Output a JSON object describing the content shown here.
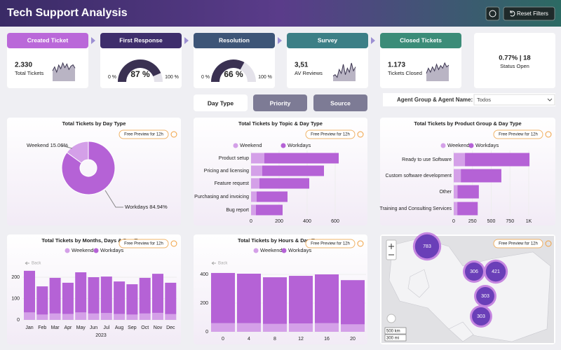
{
  "header": {
    "title": "Tech Support Analysis",
    "reset_button": "Reset Filters"
  },
  "kpis": [
    {
      "step": "Created Ticket",
      "value": "2.330",
      "label": "Total Tickets",
      "sparkline": [
        40,
        55,
        35,
        62,
        48,
        70,
        52,
        66,
        45,
        58,
        63,
        50
      ]
    },
    {
      "step": "First Response",
      "gauge": {
        "value": 87,
        "label": "87 %"
      },
      "min": {
        "value": 0,
        "label": "0 %"
      },
      "max": {
        "value": 100,
        "label": "100 %"
      }
    },
    {
      "step": "Resolution",
      "gauge": {
        "value": 66,
        "label": "66 %"
      },
      "min": {
        "value": 0,
        "label": "0 %"
      },
      "max": {
        "value": 100,
        "label": "100 %"
      }
    },
    {
      "step": "Survey",
      "value": "3,51",
      "label": "AV Reviews",
      "sparkline": [
        20,
        25,
        15,
        45,
        30,
        65,
        25,
        50,
        35,
        70,
        40,
        55
      ]
    },
    {
      "step": "Closed Tickets",
      "value": "1.173",
      "label": "Tickets Closed",
      "sparkline": [
        30,
        50,
        35,
        55,
        40,
        65,
        45,
        60,
        50,
        70,
        55,
        62
      ]
    },
    {
      "value": "0.77% | 18",
      "label": "Status Open"
    }
  ],
  "tabs": [
    "Day Type",
    "Priority",
    "Source"
  ],
  "filter": {
    "label": "Agent Group & Agent Name:",
    "value": "Todos"
  },
  "badge": "Free Preview for 12h",
  "back": "Back",
  "charts": [
    {
      "type": "pie",
      "title": "Total Tickets by Day Type",
      "categories": [
        "Weekend",
        "Workdays"
      ],
      "values": [
        15.06,
        84.94
      ],
      "value_labels": [
        "Weekend 15.06%",
        "Workdays 84.94%"
      ],
      "colors": [
        "#d4a0e8",
        "#b562d6"
      ]
    },
    {
      "type": "hbar",
      "title": "Total Tickets by Topic & Day Type",
      "categories": [
        "Product setup",
        "Pricing and licensing",
        "Feature request",
        "Purchasing and invoicing",
        "Bug report"
      ],
      "series": [
        {
          "name": "Weekend",
          "color": "#d4a0e8",
          "values": [
            95,
            80,
            60,
            40,
            35
          ]
        },
        {
          "name": "Workdays",
          "color": "#b562d6",
          "values": [
            530,
            440,
            355,
            220,
            190
          ]
        }
      ],
      "xlim": [
        0,
        700
      ],
      "xticks": [
        0,
        200,
        400,
        600
      ]
    },
    {
      "type": "hbar",
      "title": "Total Tickets by Product Group & Day Type",
      "categories": [
        "Ready to use Software",
        "Custom software development",
        "Other",
        "Training and Consulting Services"
      ],
      "series": [
        {
          "name": "Weekend",
          "color": "#d4a0e8",
          "values": [
            150,
            95,
            50,
            48
          ]
        },
        {
          "name": "Workdays",
          "color": "#b562d6",
          "values": [
            860,
            540,
            285,
            272
          ]
        }
      ],
      "xlim": [
        0,
        1100
      ],
      "xticks": [
        0,
        250,
        500,
        750,
        {
          "value": 1000,
          "label": "1K"
        }
      ]
    },
    {
      "type": "column",
      "title": "Total Tickets by Months, Days & Day Type",
      "categories": [
        "Jan",
        "Feb",
        "Mar",
        "Apr",
        "May",
        "Jun",
        "Jul",
        "Aug",
        "Sep",
        "Oct",
        "Nov",
        "Dec"
      ],
      "x_label": "2023",
      "series": [
        {
          "name": "Weekend",
          "color": "#d4a0e8",
          "values": [
            35,
            25,
            30,
            28,
            35,
            30,
            32,
            28,
            25,
            30,
            33,
            27
          ]
        },
        {
          "name": "Workdays",
          "color": "#b562d6",
          "values": [
            195,
            132,
            167,
            146,
            188,
            170,
            171,
            152,
            142,
            167,
            183,
            147
          ]
        }
      ],
      "ylim": [
        0,
        240
      ],
      "yticks": [
        0,
        100,
        200
      ]
    },
    {
      "type": "column",
      "title": "Total Tickets by Hours & Day Type",
      "categories": [
        0,
        4,
        8,
        12,
        16,
        20
      ],
      "series": [
        {
          "name": "Weekend",
          "color": "#d4a0e8",
          "values": [
            60,
            60,
            55,
            58,
            60,
            52
          ]
        },
        {
          "name": "Workdays",
          "color": "#b562d6",
          "values": [
            350,
            345,
            325,
            332,
            340,
            308
          ]
        }
      ],
      "ylim": [
        0,
        440
      ],
      "yticks": [
        0,
        200,
        400
      ]
    },
    {
      "type": "map",
      "values": [
        783,
        306,
        421,
        303,
        303
      ],
      "scale_labels": [
        "500 km",
        "300 mi"
      ]
    }
  ]
}
